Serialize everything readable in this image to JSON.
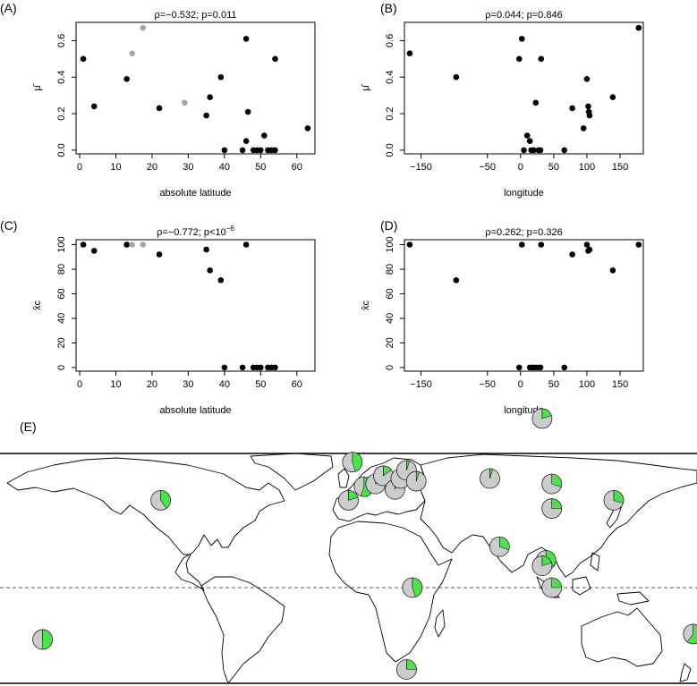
{
  "colors": {
    "black": "#000000",
    "grey": "#a6a6a6",
    "pie_grey": "#cccccc",
    "pie_green": "#4ee04e"
  },
  "chart_data": [
    {
      "panel": "(A)",
      "type": "scatter",
      "title": "ρ=−0.532; p=0.011",
      "xlabel": "absolute latitude",
      "ylabel": "μ̂",
      "xlim": [
        -1,
        65
      ],
      "ylim": [
        -0.02,
        0.7
      ],
      "xticks": [
        "0",
        "10",
        "20",
        "30",
        "40",
        "50",
        "60"
      ],
      "yticks": [
        "0.0",
        "0.2",
        "0.4",
        "0.6"
      ],
      "points": [
        {
          "x": 1,
          "y": 0.5,
          "c": "black"
        },
        {
          "x": 4,
          "y": 0.24,
          "c": "black"
        },
        {
          "x": 13,
          "y": 0.39,
          "c": "black"
        },
        {
          "x": 14.5,
          "y": 0.53,
          "c": "grey"
        },
        {
          "x": 17.5,
          "y": 0.67,
          "c": "grey"
        },
        {
          "x": 22,
          "y": 0.23,
          "c": "black"
        },
        {
          "x": 29,
          "y": 0.26,
          "c": "grey"
        },
        {
          "x": 35,
          "y": 0.19,
          "c": "black"
        },
        {
          "x": 36,
          "y": 0.29,
          "c": "black"
        },
        {
          "x": 39,
          "y": 0.4,
          "c": "black"
        },
        {
          "x": 40,
          "y": 0.0,
          "c": "black"
        },
        {
          "x": 45,
          "y": 0.0,
          "c": "black"
        },
        {
          "x": 46,
          "y": 0.61,
          "c": "black"
        },
        {
          "x": 46,
          "y": 0.05,
          "c": "black"
        },
        {
          "x": 46.5,
          "y": 0.21,
          "c": "black"
        },
        {
          "x": 48,
          "y": 0.0,
          "c": "black"
        },
        {
          "x": 49,
          "y": 0.0,
          "c": "black"
        },
        {
          "x": 50,
          "y": 0.0,
          "c": "black"
        },
        {
          "x": 51,
          "y": 0.08,
          "c": "black"
        },
        {
          "x": 52,
          "y": 0.0,
          "c": "black"
        },
        {
          "x": 53,
          "y": 0.0,
          "c": "black"
        },
        {
          "x": 54,
          "y": 0.5,
          "c": "black"
        },
        {
          "x": 54,
          "y": 0.0,
          "c": "black"
        },
        {
          "x": 63,
          "y": 0.12,
          "c": "black"
        }
      ]
    },
    {
      "panel": "(B)",
      "type": "scatter",
      "title": "ρ=0.044; p=0.846",
      "xlabel": "longitude",
      "ylabel": "μ̂",
      "xlim": [
        -175,
        185
      ],
      "ylim": [
        -0.02,
        0.7
      ],
      "xticks": [
        "−150",
        "−50",
        "0",
        "50",
        "100",
        "150"
      ],
      "xtick_values": [
        -150,
        -50,
        0,
        50,
        100,
        150
      ],
      "yticks": [
        "0.0",
        "0.2",
        "0.4",
        "0.6"
      ],
      "points": [
        {
          "x": -167,
          "y": 0.53
        },
        {
          "x": -97,
          "y": 0.4
        },
        {
          "x": -2,
          "y": 0.5
        },
        {
          "x": 2,
          "y": 0.61
        },
        {
          "x": 5,
          "y": 0.0
        },
        {
          "x": 10,
          "y": 0.08
        },
        {
          "x": 14,
          "y": 0.05
        },
        {
          "x": 16,
          "y": 0.0
        },
        {
          "x": 20,
          "y": 0.0
        },
        {
          "x": 23,
          "y": 0.26
        },
        {
          "x": 27,
          "y": 0.0
        },
        {
          "x": 30,
          "y": 0.0
        },
        {
          "x": 31,
          "y": 0.5
        },
        {
          "x": 66,
          "y": 0.0
        },
        {
          "x": 78,
          "y": 0.23
        },
        {
          "x": 95,
          "y": 0.12
        },
        {
          "x": 100,
          "y": 0.39
        },
        {
          "x": 102,
          "y": 0.24
        },
        {
          "x": 103,
          "y": 0.21
        },
        {
          "x": 104,
          "y": 0.19
        },
        {
          "x": 139,
          "y": 0.29
        },
        {
          "x": 178,
          "y": 0.67
        }
      ]
    },
    {
      "panel": "(C)",
      "type": "scatter",
      "title": "ρ=−0.772; p<10",
      "title_exponent": "−6",
      "xlabel": "absolute latitude",
      "ylabel": "x̂c",
      "xlim": [
        -1,
        65
      ],
      "ylim": [
        -3,
        104
      ],
      "xticks": [
        "0",
        "10",
        "20",
        "30",
        "40",
        "50",
        "60"
      ],
      "yticks": [
        "0",
        "20",
        "40",
        "60",
        "80",
        "100"
      ],
      "points": [
        {
          "x": 1,
          "y": 100,
          "c": "black"
        },
        {
          "x": 4,
          "y": 95,
          "c": "black"
        },
        {
          "x": 13,
          "y": 100,
          "c": "black"
        },
        {
          "x": 14.5,
          "y": 100,
          "c": "grey"
        },
        {
          "x": 17.5,
          "y": 100,
          "c": "grey"
        },
        {
          "x": 22,
          "y": 92,
          "c": "black"
        },
        {
          "x": 35,
          "y": 96,
          "c": "black"
        },
        {
          "x": 36,
          "y": 79,
          "c": "black"
        },
        {
          "x": 39,
          "y": 71,
          "c": "black"
        },
        {
          "x": 40,
          "y": 0,
          "c": "black"
        },
        {
          "x": 45,
          "y": 0,
          "c": "black"
        },
        {
          "x": 46,
          "y": 100,
          "c": "black"
        },
        {
          "x": 48,
          "y": 0,
          "c": "black"
        },
        {
          "x": 49,
          "y": 0,
          "c": "black"
        },
        {
          "x": 50,
          "y": 0,
          "c": "black"
        },
        {
          "x": 52,
          "y": 0,
          "c": "black"
        },
        {
          "x": 53,
          "y": 0,
          "c": "black"
        },
        {
          "x": 54,
          "y": 0,
          "c": "black"
        }
      ]
    },
    {
      "panel": "(D)",
      "type": "scatter",
      "title": "ρ=0.262; p=0.326",
      "xlabel": "longitude",
      "ylabel": "x̂c",
      "xlim": [
        -175,
        185
      ],
      "ylim": [
        -3,
        104
      ],
      "xticks": [
        "−150",
        "−50",
        "0",
        "50",
        "100",
        "150"
      ],
      "xtick_values": [
        -150,
        -50,
        0,
        50,
        100,
        150
      ],
      "yticks": [
        "0",
        "20",
        "40",
        "60",
        "80",
        "100"
      ],
      "points": [
        {
          "x": -167,
          "y": 100
        },
        {
          "x": -97,
          "y": 71
        },
        {
          "x": -2,
          "y": 0
        },
        {
          "x": 2,
          "y": 100
        },
        {
          "x": 14,
          "y": 0
        },
        {
          "x": 18,
          "y": 0
        },
        {
          "x": 22,
          "y": 0
        },
        {
          "x": 27,
          "y": 0
        },
        {
          "x": 30,
          "y": 0
        },
        {
          "x": 31,
          "y": 100
        },
        {
          "x": 66,
          "y": 0
        },
        {
          "x": 78,
          "y": 92
        },
        {
          "x": 100,
          "y": 100
        },
        {
          "x": 102,
          "y": 95
        },
        {
          "x": 104,
          "y": 96
        },
        {
          "x": 139,
          "y": 79
        },
        {
          "x": 178,
          "y": 100
        }
      ]
    }
  ],
  "map": {
    "panel": "(E)",
    "pies": [
      {
        "lon": -97,
        "lat": 32,
        "green": 0.4
      },
      {
        "lon": -158,
        "lat": -19,
        "green": 0.5
      },
      {
        "lon": 2,
        "lat": 46,
        "green": 0.45
      },
      {
        "lon": 8,
        "lat": 37,
        "green": 0.55
      },
      {
        "lon": 0,
        "lat": 32,
        "green": 0.2
      },
      {
        "lon": 14,
        "lat": 38,
        "green": 0.1
      },
      {
        "lon": 18,
        "lat": 41,
        "green": 0.15
      },
      {
        "lon": 24,
        "lat": 36,
        "green": 0.05
      },
      {
        "lon": 27,
        "lat": 40,
        "green": 0.05
      },
      {
        "lon": 30,
        "lat": 43,
        "green": 0.05
      },
      {
        "lon": 35,
        "lat": 39,
        "green": 0.05
      },
      {
        "lon": 73,
        "lat": 40,
        "green": 0.05
      },
      {
        "lon": 100,
        "lat": 62,
        "green": 0.2
      },
      {
        "lon": 105,
        "lat": 38,
        "green": 0.3
      },
      {
        "lon": 105,
        "lat": 29,
        "green": 0.25
      },
      {
        "lon": 137,
        "lat": 32,
        "green": 0.3
      },
      {
        "lon": 78,
        "lat": 15,
        "green": 0.3
      },
      {
        "lon": 102,
        "lat": 10,
        "green": 0.35
      },
      {
        "lon": 100,
        "lat": 8,
        "green": 0.2
      },
      {
        "lon": 105,
        "lat": 0,
        "green": 0.25
      },
      {
        "lon": 33,
        "lat": 0,
        "green": 0.45
      },
      {
        "lon": 30,
        "lat": -30,
        "green": 0.25
      },
      {
        "lon": 178,
        "lat": -17,
        "green": 0.6
      }
    ]
  }
}
